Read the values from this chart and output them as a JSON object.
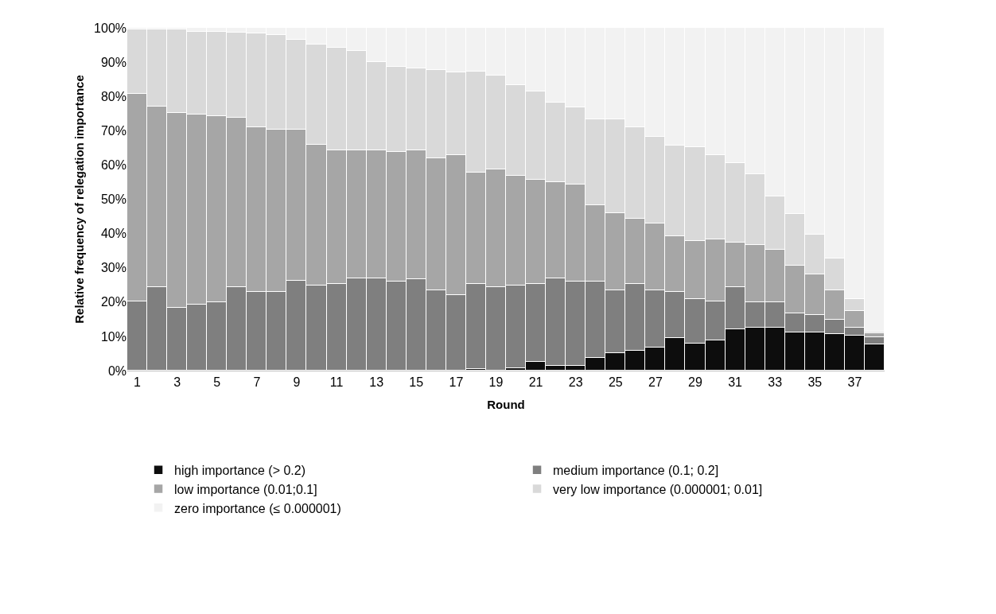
{
  "chart_data": {
    "type": "bar",
    "stacked": true,
    "xlabel": "Round",
    "ylabel": "Relative frequency of relegation importance",
    "x": [
      1,
      2,
      3,
      4,
      5,
      6,
      7,
      8,
      9,
      10,
      11,
      12,
      13,
      14,
      15,
      16,
      17,
      18,
      19,
      20,
      21,
      22,
      23,
      24,
      25,
      26,
      27,
      28,
      29,
      30,
      31,
      32,
      33,
      34,
      35,
      36,
      37,
      38
    ],
    "xlim": [
      0.5,
      38.5
    ],
    "xticks": [
      1,
      3,
      5,
      7,
      9,
      11,
      13,
      15,
      17,
      19,
      21,
      23,
      25,
      27,
      29,
      31,
      33,
      35,
      37
    ],
    "ylim": [
      0,
      100
    ],
    "yticks": [
      {
        "value": 0,
        "label": "0%"
      },
      {
        "value": 10,
        "label": "10%"
      },
      {
        "value": 20,
        "label": "20%"
      },
      {
        "value": 30,
        "label": "30%"
      },
      {
        "value": 40,
        "label": "40%"
      },
      {
        "value": 50,
        "label": "50%"
      },
      {
        "value": 60,
        "label": "60%"
      },
      {
        "value": 70,
        "label": "70%"
      },
      {
        "value": 80,
        "label": "80%"
      },
      {
        "value": 90,
        "label": "90%"
      },
      {
        "value": 100,
        "label": "100%"
      }
    ],
    "legend": "bottom",
    "series": [
      {
        "name": "high importance (> 0.2)",
        "color": "#0d0d0d",
        "values": [
          0,
          0,
          0,
          0,
          0,
          0,
          0,
          0,
          0,
          0,
          0,
          0,
          0,
          0,
          0,
          0,
          0,
          0.4,
          0,
          0.8,
          2.6,
          1.3,
          1.4,
          3.6,
          5.2,
          5.9,
          6.7,
          9.5,
          7.9,
          8.9,
          12.1,
          12.5,
          12.5,
          11.1,
          11.1,
          10.7,
          10.3,
          7.6
        ]
      },
      {
        "name": "medium importance (0.1; 0.2]",
        "color": "#7f7f7f",
        "values": [
          20.3,
          24.3,
          18.4,
          19.3,
          19.9,
          24.3,
          22.9,
          23,
          26.2,
          24.8,
          25.3,
          27,
          27,
          26.1,
          26.6,
          23.5,
          22.1,
          24.9,
          24.3,
          24.0,
          22.7,
          25.7,
          24.7,
          22.5,
          18.3,
          19.4,
          16.8,
          13.5,
          12.9,
          11.4,
          12.2,
          7.4,
          7.4,
          5.6,
          5.1,
          4.2,
          2.2,
          2.1
        ]
      },
      {
        "name": "low importance (0.01;0.1]",
        "color": "#a6a6a6",
        "values": [
          60.4,
          52.7,
          56.8,
          55.5,
          54.4,
          49.5,
          48.2,
          47.2,
          44,
          41.2,
          39,
          37.3,
          37.3,
          37.8,
          37.7,
          38.5,
          40.8,
          32.5,
          34.4,
          32.1,
          30.3,
          28.1,
          28.1,
          22.1,
          22.5,
          19.1,
          19.5,
          16.3,
          17.1,
          17.9,
          13.1,
          16.7,
          15.3,
          14,
          11.8,
          8.6,
          4.9,
          1.1
        ]
      },
      {
        "name": "very low importance (0.000001; 0.01]",
        "color": "#d9d9d9",
        "values": [
          18.8,
          22.5,
          24.4,
          24,
          24.5,
          24.9,
          27.2,
          27.6,
          26.3,
          29.1,
          29.9,
          29,
          25.8,
          24.7,
          23.9,
          25.8,
          24,
          29.5,
          27.4,
          26.4,
          25.9,
          23.1,
          22.6,
          25.1,
          27.3,
          26.7,
          25.2,
          26.3,
          27.3,
          24.7,
          23.2,
          20.7,
          15.7,
          14.9,
          11.7,
          9.3,
          3.4,
          0.5
        ]
      },
      {
        "name": "zero importance (≤ 0.000001)",
        "color": "#f2f2f2",
        "values": [
          0.5,
          0.5,
          0.4,
          1.2,
          1.2,
          1.3,
          1.7,
          2.2,
          3.5,
          4.9,
          5.8,
          6.7,
          9.9,
          11.4,
          11.8,
          12.2,
          13.1,
          12.7,
          13.9,
          16.7,
          18.5,
          21.8,
          23.2,
          26.7,
          26.7,
          28.9,
          31.8,
          34.4,
          34.8,
          37.1,
          39.4,
          42.7,
          49.1,
          54.4,
          60.3,
          67.2,
          79.2,
          88.7
        ]
      }
    ]
  }
}
